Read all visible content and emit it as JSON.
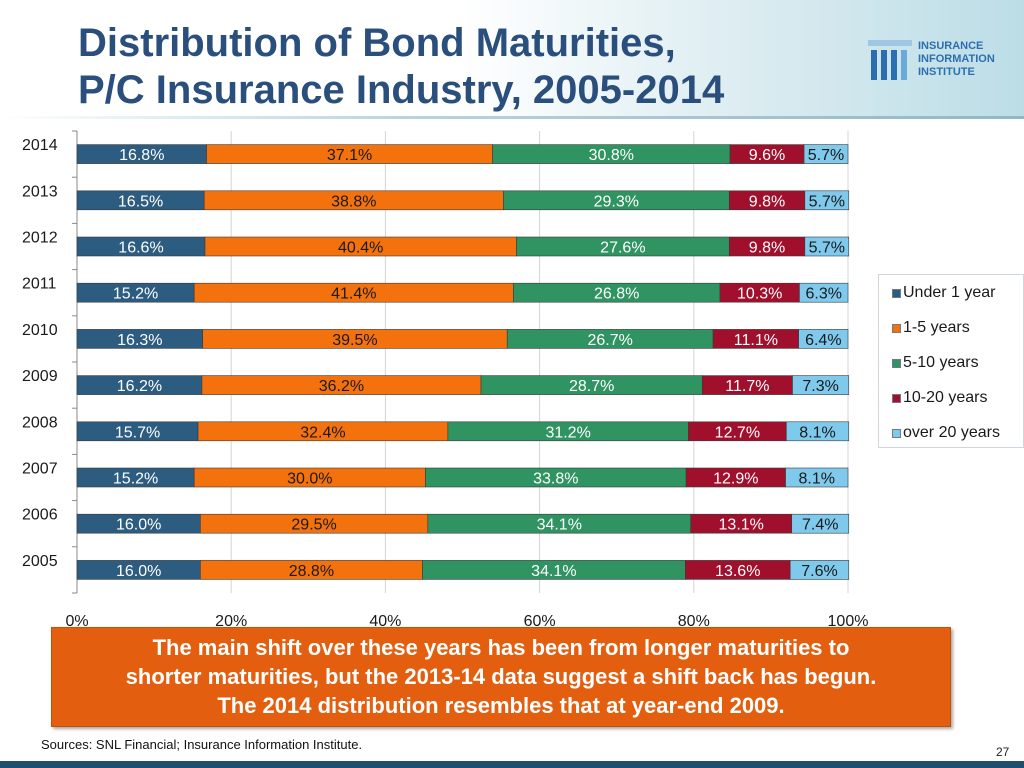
{
  "slide": {
    "title_line1": "Distribution of Bond Maturities,",
    "title_line2": "P/C Insurance Industry, 2005-2014",
    "logo": {
      "line1": "INSURANCE",
      "line2": "INFORMATION",
      "line3": "INSTITUTE"
    },
    "callout": {
      "line1": "The main shift over these years has been from longer maturities to",
      "line2": "shorter maturities, but the 2013-14 data suggest a shift back has begun.",
      "line3": "The 2014 distribution resembles that at year-end 2009."
    },
    "sources": "Sources: SNL Financial; Insurance Information Institute.",
    "page_number": "27"
  },
  "chart_data": {
    "type": "bar",
    "orientation": "horizontal",
    "stacked": "percent",
    "categories": [
      "2014",
      "2013",
      "2012",
      "2011",
      "2010",
      "2009",
      "2008",
      "2007",
      "2006",
      "2005"
    ],
    "series": [
      {
        "name": "Under 1 year",
        "color": "#2c5c80",
        "values": [
          16.8,
          16.5,
          16.6,
          15.2,
          16.3,
          16.2,
          15.7,
          15.2,
          16.0,
          16.0
        ]
      },
      {
        "name": "1-5 years",
        "color": "#f4720e",
        "values": [
          37.1,
          38.8,
          40.4,
          41.4,
          39.5,
          36.2,
          32.4,
          30.0,
          29.5,
          28.8
        ]
      },
      {
        "name": "5-10 years",
        "color": "#2f9461",
        "values": [
          30.8,
          29.3,
          27.6,
          26.8,
          26.7,
          28.7,
          31.2,
          33.8,
          34.1,
          34.1
        ]
      },
      {
        "name": "10-20 years",
        "color": "#a0102d",
        "values": [
          9.6,
          9.8,
          9.8,
          10.3,
          11.1,
          11.7,
          12.7,
          12.9,
          13.1,
          13.6
        ]
      },
      {
        "name": "over 20 years",
        "color": "#7ec9ec",
        "values": [
          5.7,
          5.7,
          5.7,
          6.3,
          6.4,
          7.3,
          8.1,
          8.1,
          7.4,
          7.6
        ]
      }
    ],
    "labels": [
      [
        "16.8%",
        "37.1%",
        "30.8%",
        "9.6%",
        "5.7%"
      ],
      [
        "16.5%",
        "38.8%",
        "29.3%",
        "9.8%",
        "5.7%"
      ],
      [
        "16.6%",
        "40.4%",
        "27.6%",
        "9.8%",
        "5.7%"
      ],
      [
        "15.2%",
        "41.4%",
        "26.8%",
        "10.3%",
        "6.3%"
      ],
      [
        "16.3%",
        "39.5%",
        "26.7%",
        "11.1%",
        "6.4%"
      ],
      [
        "16.2%",
        "36.2%",
        "28.7%",
        "11.7%",
        "7.3%"
      ],
      [
        "15.7%",
        "32.4%",
        "31.2%",
        "12.7%",
        "8.1%"
      ],
      [
        "15.2%",
        "30.0%",
        "33.8%",
        "12.9%",
        "8.1%"
      ],
      [
        "16.0%",
        "29.5%",
        "34.1%",
        "13.1%",
        "7.4%"
      ],
      [
        "16.0%",
        "28.8%",
        "34.1%",
        "13.6%",
        "7.6%"
      ]
    ],
    "label_colors": [
      "#ffffff",
      "#1a1a1a",
      "#ffffff",
      "#ffffff",
      "#1a1a1a"
    ],
    "x_ticks": [
      0,
      20,
      40,
      60,
      80,
      100
    ],
    "x_tick_labels": [
      "0%",
      "20%",
      "40%",
      "60%",
      "80%",
      "100%"
    ],
    "xlim": [
      0,
      100
    ],
    "grid": true,
    "legend_position": "right",
    "title": "",
    "xlabel": "",
    "ylabel": ""
  }
}
